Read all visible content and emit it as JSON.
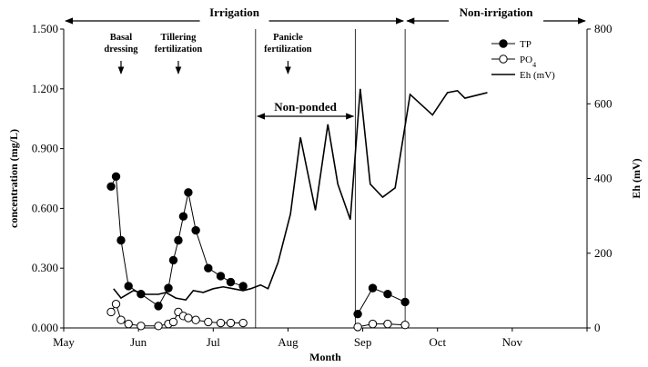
{
  "chart_data": {
    "type": "line",
    "xlabel": "Month",
    "ylabel_left": "concentration (mg/L)",
    "ylabel_right": "Eh (mV)",
    "x_tick_labels": [
      "May",
      "Jun",
      "Jul",
      "Aug",
      "Sep",
      "Oct",
      "Nov"
    ],
    "xlim_day_of_month_axis": [
      0,
      210
    ],
    "ylim_left": [
      0,
      1.5
    ],
    "ylim_right": [
      0,
      800
    ],
    "yticks_left": [
      "0.000",
      "0.300",
      "0.600",
      "0.900",
      "1.200",
      "1.500"
    ],
    "yticks_right": [
      "0",
      "200",
      "400",
      "600",
      "800"
    ],
    "regions": [
      {
        "label": "Irrigation",
        "from_day": 0,
        "to_day": 137
      },
      {
        "label": "Non-irrigation",
        "from_day": 137,
        "to_day": 210
      }
    ],
    "non_ponded": {
      "label": "Non-ponded",
      "from_day": 77,
      "to_day": 117
    },
    "annotations": [
      {
        "lines": [
          "Basal",
          "dressing"
        ],
        "day": 23
      },
      {
        "lines": [
          "Tillering",
          "fertilization"
        ],
        "day": 46
      },
      {
        "lines": [
          "Panicle",
          "fertilization"
        ],
        "day": 90
      }
    ],
    "vertical_lines_day": [
      77,
      117,
      137
    ],
    "legend": [
      {
        "name": "TP",
        "style": "filled-circle"
      },
      {
        "name": "PO",
        "sub": "4",
        "style": "open-circle"
      },
      {
        "name": "Eh (mV)",
        "style": "line"
      }
    ],
    "legend_position": "top-right",
    "series": [
      {
        "name": "TP",
        "axis": "left",
        "segments": [
          [
            [
              19,
              0.71
            ],
            [
              21,
              0.76
            ],
            [
              23,
              0.44
            ],
            [
              26,
              0.21
            ],
            [
              31,
              0.17
            ],
            [
              38,
              0.11
            ],
            [
              42,
              0.2
            ],
            [
              44,
              0.34
            ],
            [
              46,
              0.44
            ],
            [
              48,
              0.56
            ],
            [
              50,
              0.68
            ],
            [
              53,
              0.49
            ],
            [
              58,
              0.3
            ],
            [
              63,
              0.26
            ],
            [
              67,
              0.23
            ],
            [
              72,
              0.21
            ]
          ],
          [
            [
              118,
              0.07
            ],
            [
              124,
              0.2
            ],
            [
              130,
              0.17
            ],
            [
              137,
              0.13
            ]
          ]
        ]
      },
      {
        "name": "PO4",
        "axis": "left",
        "segments": [
          [
            [
              19,
              0.08
            ],
            [
              21,
              0.12
            ],
            [
              23,
              0.04
            ],
            [
              26,
              0.02
            ],
            [
              31,
              0.01
            ],
            [
              38,
              0.01
            ],
            [
              42,
              0.02
            ],
            [
              44,
              0.03
            ],
            [
              46,
              0.08
            ],
            [
              48,
              0.06
            ],
            [
              50,
              0.05
            ],
            [
              53,
              0.04
            ],
            [
              58,
              0.03
            ],
            [
              63,
              0.025
            ],
            [
              67,
              0.025
            ],
            [
              72,
              0.025
            ]
          ],
          [
            [
              118,
              0.005
            ],
            [
              124,
              0.02
            ],
            [
              130,
              0.02
            ],
            [
              137,
              0.015
            ]
          ]
        ]
      },
      {
        "name": "Eh (mV)",
        "axis": "right",
        "points": [
          [
            20,
            105
          ],
          [
            23,
            80
          ],
          [
            28,
            100
          ],
          [
            33,
            90
          ],
          [
            38,
            90
          ],
          [
            41,
            95
          ],
          [
            45,
            80
          ],
          [
            49,
            75
          ],
          [
            52,
            100
          ],
          [
            56,
            95
          ],
          [
            60,
            105
          ],
          [
            64,
            110
          ],
          [
            68,
            105
          ],
          [
            72,
            100
          ],
          [
            75,
            105
          ],
          [
            79,
            115
          ],
          [
            82,
            105
          ],
          [
            86,
            175
          ],
          [
            91,
            305
          ],
          [
            95,
            510
          ],
          [
            101,
            315
          ],
          [
            106,
            545
          ],
          [
            110,
            385
          ],
          [
            115,
            290
          ],
          [
            119,
            640
          ],
          [
            123,
            385
          ],
          [
            128,
            350
          ],
          [
            133,
            375
          ],
          [
            139,
            625
          ],
          [
            148,
            570
          ],
          [
            154,
            630
          ],
          [
            158,
            635
          ],
          [
            161,
            615
          ],
          [
            170,
            630
          ]
        ]
      }
    ]
  }
}
